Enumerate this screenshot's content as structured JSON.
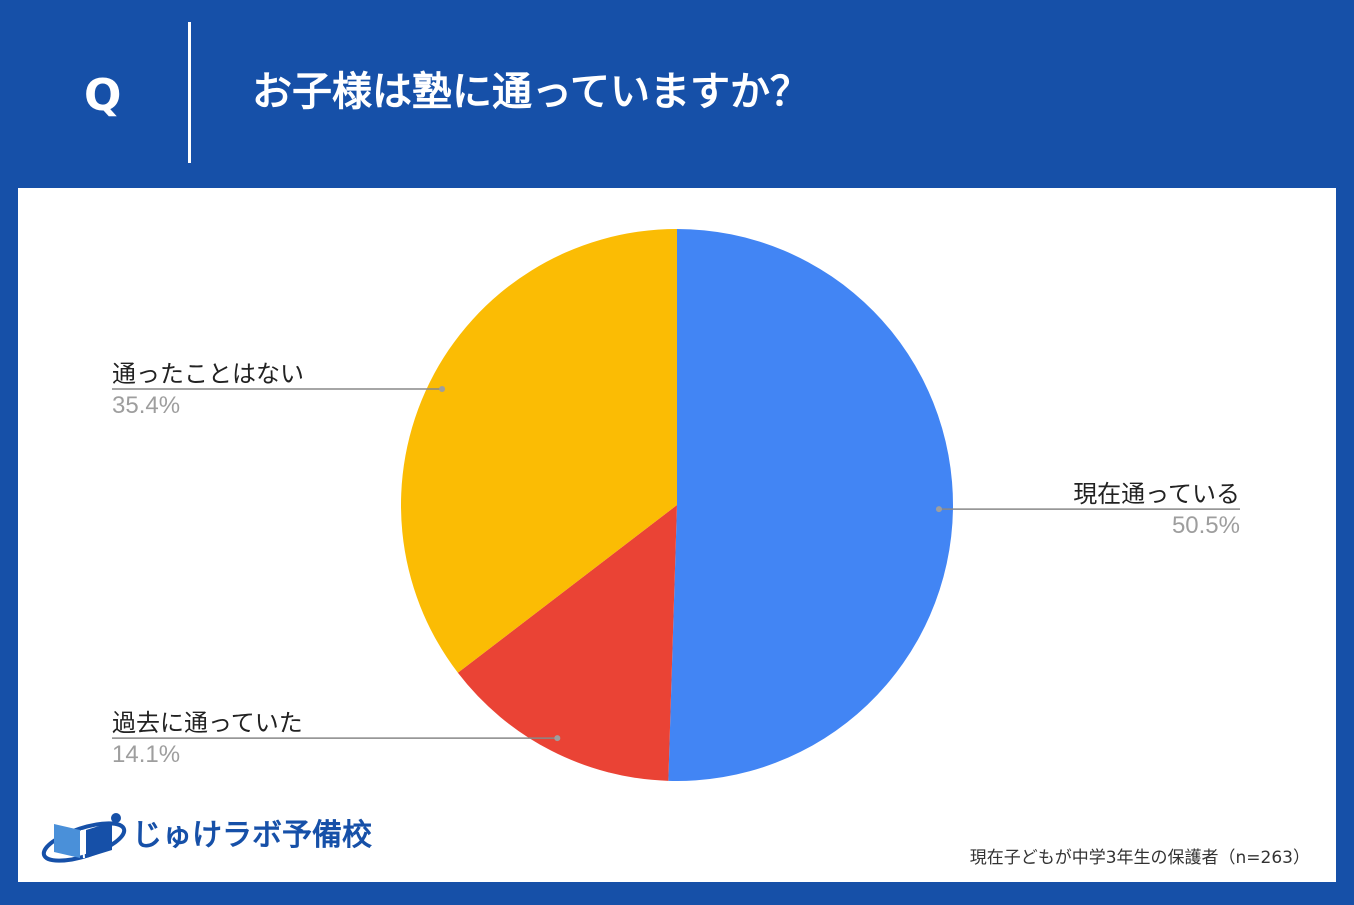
{
  "header": {
    "q_mark": "Q",
    "question": "お子様は塾に通っていますか？"
  },
  "colors": {
    "background": "#1650a8",
    "panel": "#ffffff",
    "leader_line": "#888888"
  },
  "chart_data": {
    "type": "pie",
    "title": "",
    "start_angle_deg": 0,
    "direction": "clockwise",
    "slices": [
      {
        "label": "現在通っている",
        "value": 50.5,
        "display": "50.5%",
        "color": "#4285f4",
        "label_side": "right"
      },
      {
        "label": "過去に通っていた",
        "value": 14.1,
        "display": "14.1%",
        "color": "#ea4335",
        "label_side": "left"
      },
      {
        "label": "通ったことはない",
        "value": 35.4,
        "display": "35.4%",
        "color": "#fbbc04",
        "label_side": "left"
      }
    ]
  },
  "logo": {
    "name": "じゅけラボ予備校",
    "icon": "book-icon"
  },
  "footnote": "現在子どもが中学3年生の保護者（n=263）"
}
